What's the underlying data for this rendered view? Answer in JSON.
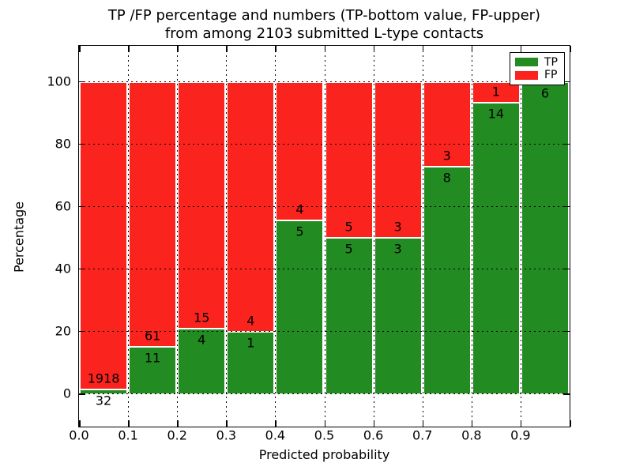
{
  "title": {
    "line1": "TP /FP percentage and numbers (TP-bottom value, FP-upper)",
    "line2": "from among 2103 submitted L-type contacts"
  },
  "axes": {
    "xlabel": "Predicted probability",
    "ylabel": "Percentage",
    "x_tick_labels": [
      "0.0",
      "0.1",
      "0.2",
      "0.3",
      "0.4",
      "0.5",
      "0.6",
      "0.7",
      "0.8",
      "0.9"
    ],
    "y_tick_labels": [
      "0",
      "20",
      "40",
      "60",
      "80",
      "100"
    ],
    "y_tick_values": [
      0,
      20,
      40,
      60,
      80,
      100
    ]
  },
  "legend": {
    "items": [
      {
        "label": "TP",
        "color": "#228B22"
      },
      {
        "label": "FP",
        "color": "#FA231E"
      }
    ],
    "position": "upper right"
  },
  "colors": {
    "tp": "#228B22",
    "fp": "#FA231E",
    "bar_edge": "#FFFFFF",
    "grid": "#000000",
    "background": "#FFFFFF",
    "text": "#000000"
  },
  "chart_data": {
    "type": "bar",
    "stacked": true,
    "normalized_to_percent": true,
    "title": "TP /FP percentage and numbers (TP-bottom value, FP-upper) from among 2103 submitted L-type contacts",
    "xlabel": "Predicted probability",
    "ylabel": "Percentage",
    "total_contacts": 2103,
    "bin_edges": [
      0.0,
      0.1,
      0.2,
      0.3,
      0.4,
      0.5,
      0.6,
      0.7,
      0.8,
      0.9,
      1.0
    ],
    "categories": [
      "0.0-0.1",
      "0.1-0.2",
      "0.2-0.3",
      "0.3-0.4",
      "0.4-0.5",
      "0.5-0.6",
      "0.6-0.7",
      "0.7-0.8",
      "0.8-0.9",
      "0.9-1.0"
    ],
    "series": [
      {
        "name": "TP",
        "counts": [
          32,
          11,
          4,
          1,
          5,
          5,
          3,
          8,
          14,
          6
        ],
        "percent": [
          1.64,
          15.28,
          21.05,
          20.0,
          55.56,
          50.0,
          50.0,
          72.73,
          93.33,
          100.0
        ]
      },
      {
        "name": "FP",
        "counts": [
          1918,
          61,
          15,
          4,
          4,
          5,
          3,
          3,
          1,
          0
        ],
        "percent": [
          98.36,
          84.72,
          78.95,
          80.0,
          44.44,
          50.0,
          50.0,
          27.27,
          6.67,
          0.0
        ]
      }
    ],
    "annotation_rule": "TP count below stack boundary, FP count above stack boundary",
    "xlim": [
      0.0,
      1.0
    ],
    "ylim_display": [
      -10.6,
      111.3
    ],
    "grid": true,
    "grid_style": "dotted",
    "legend_position": "upper right"
  }
}
